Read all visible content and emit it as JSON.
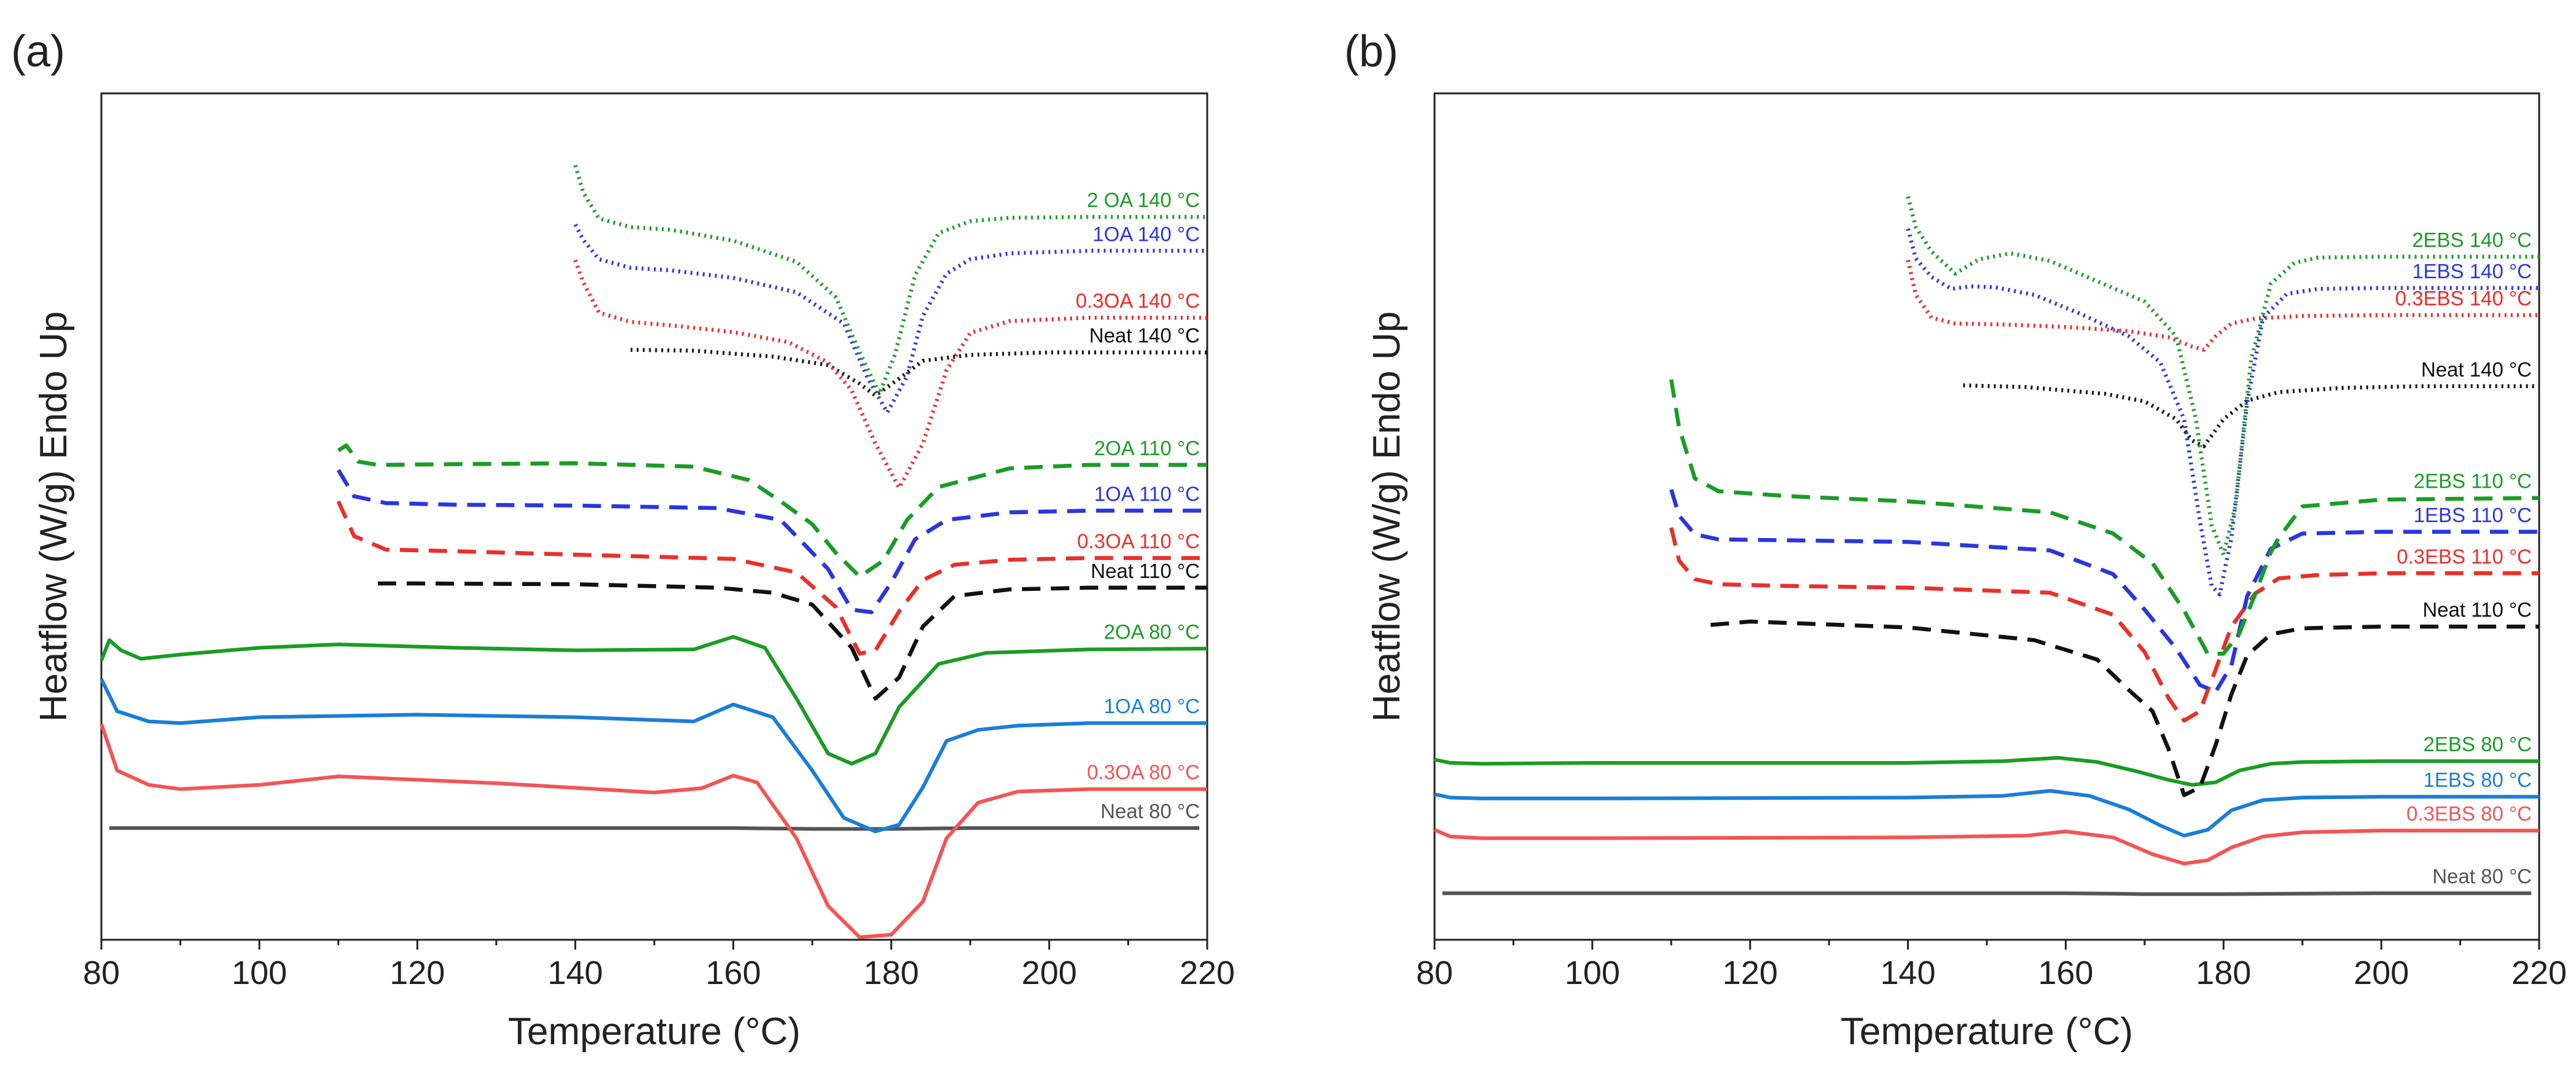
{
  "chart_data": [
    {
      "type": "line",
      "panel": "(a)",
      "xlabel": "Temperature (°C)",
      "ylabel": "Heatflow (W/g) Endo Up",
      "xlim": [
        80,
        220
      ],
      "xticks": [
        80,
        100,
        120,
        140,
        160,
        180,
        200,
        220
      ],
      "ylim": [
        0,
        100
      ],
      "y_units": "arbitrary (curves vertically offset)",
      "series": [
        {
          "name": "Neat 80 °C",
          "color": "#555555",
          "style": "solid",
          "x": [
            81,
            100,
            140,
            160,
            170,
            180,
            190,
            200,
            219
          ],
          "y": [
            13.2,
            13.2,
            13.2,
            13.2,
            13.1,
            13.1,
            13.2,
            13.2,
            13.2
          ]
        },
        {
          "name": "0.3OA 80 °C",
          "color": "#f25555",
          "style": "solid",
          "x": [
            80,
            82,
            86,
            90,
            100,
            110,
            130,
            150,
            156,
            160,
            163,
            168,
            172,
            176,
            180,
            184,
            187,
            191,
            196,
            205,
            220
          ],
          "y": [
            25.5,
            20,
            18.3,
            17.8,
            18.3,
            19.3,
            18.5,
            17.4,
            17.9,
            19.4,
            18.6,
            12,
            4,
            0.3,
            0.6,
            4.5,
            12,
            16.2,
            17.5,
            17.8,
            17.8
          ]
        },
        {
          "name": "1OA 80 °C",
          "color": "#1a7ed8",
          "style": "solid",
          "x": [
            80,
            82,
            86,
            90,
            100,
            120,
            140,
            155,
            160,
            165,
            170,
            174,
            178,
            181,
            184,
            187,
            191,
            196,
            205,
            220
          ],
          "y": [
            30.8,
            27,
            25.8,
            25.6,
            26.3,
            26.6,
            26.3,
            25.8,
            27.8,
            26.3,
            20,
            14.4,
            12.8,
            13.6,
            18,
            23.5,
            24.8,
            25.3,
            25.6,
            25.6
          ]
        },
        {
          "name": "2OA 80 °C",
          "color": "#1b9c25",
          "style": "solid",
          "x": [
            80,
            81,
            82.5,
            85,
            90,
            100,
            110,
            125,
            140,
            155,
            160,
            164,
            168,
            172,
            175,
            178,
            181,
            186,
            192,
            205,
            220
          ],
          "y": [
            33,
            35.4,
            34.2,
            33.2,
            33.7,
            34.5,
            34.9,
            34.5,
            34.2,
            34.3,
            35.8,
            34.5,
            28.5,
            22,
            20.8,
            22,
            27.5,
            32.6,
            33.9,
            34.3,
            34.4
          ]
        },
        {
          "name": "Neat 110 °C",
          "color": "#111111",
          "style": "dashed",
          "x": [
            115,
            120,
            140,
            158,
            165,
            170,
            175,
            178,
            181,
            184,
            188,
            195,
            205,
            220
          ],
          "y": [
            42.1,
            42.1,
            42,
            41.6,
            41,
            39.6,
            34.5,
            28.5,
            31,
            37,
            40.6,
            41.4,
            41.6,
            41.6
          ]
        },
        {
          "name": "0.3OA 110 °C",
          "color": "#e8312a",
          "style": "dashed",
          "x": [
            110,
            112,
            116,
            125,
            140,
            160,
            168,
            173,
            176,
            178,
            181,
            184,
            188,
            195,
            205,
            220
          ],
          "y": [
            51.8,
            47.7,
            46.1,
            45.9,
            45.5,
            45,
            43.4,
            39.3,
            33.8,
            34.2,
            38.8,
            42.5,
            44.3,
            44.9,
            45.1,
            45.1
          ]
        },
        {
          "name": "1OA 110 °C",
          "color": "#2a36e0",
          "style": "dashed",
          "x": [
            110,
            112,
            116,
            125,
            140,
            158,
            166,
            172,
            175,
            177.5,
            180,
            183,
            187,
            195,
            205,
            220
          ],
          "y": [
            55.5,
            52.4,
            51.6,
            51.4,
            51.3,
            51,
            49.6,
            43.8,
            39,
            38.7,
            42.2,
            47.3,
            49.6,
            50.5,
            50.7,
            50.7
          ]
        },
        {
          "name": "2OA 110 °C",
          "color": "#1b9c25",
          "style": "dashed",
          "x": [
            110,
            111,
            112.5,
            115,
            125,
            140,
            155,
            162,
            166,
            170,
            173,
            176,
            179,
            182,
            186,
            195,
            205,
            220
          ],
          "y": [
            57.8,
            58.4,
            56.5,
            56.1,
            56.2,
            56.3,
            55.9,
            54.3,
            51.8,
            49.1,
            45.7,
            42.9,
            44.8,
            49.6,
            53.5,
            55.7,
            56.1,
            56.1
          ]
        },
        {
          "name": "Neat 140 °C",
          "color": "#111111",
          "style": "dotted",
          "x": [
            147,
            155,
            165,
            172,
            176,
            178,
            181,
            184,
            190,
            200,
            220
          ],
          "y": [
            69.7,
            69.6,
            68.9,
            67.9,
            65.7,
            64.3,
            66.3,
            68.4,
            69.1,
            69.4,
            69.4
          ]
        },
        {
          "name": "0.3OA 140 °C",
          "color": "#f02a2a",
          "style": "dotted",
          "x": [
            140,
            141,
            143,
            147,
            152,
            160,
            167,
            172,
            175,
            178,
            181,
            184,
            187,
            190,
            195,
            205,
            220
          ],
          "y": [
            80.3,
            77.7,
            74.1,
            73,
            72.6,
            71.8,
            70.6,
            68.2,
            64.9,
            58.6,
            53.4,
            58.6,
            67.3,
            71.7,
            73.1,
            73.5,
            73.5
          ]
        },
        {
          "name": "1OA 140 °C",
          "color": "#2a36e0",
          "style": "dotted",
          "x": [
            140,
            141,
            143,
            147,
            152,
            160,
            168,
            174,
            177,
            179.5,
            182,
            184,
            187,
            190,
            195,
            205,
            220
          ],
          "y": [
            84.5,
            82.7,
            80.4,
            79.4,
            79.1,
            78.2,
            76.5,
            72.8,
            66.4,
            62.3,
            66.6,
            73.7,
            78.7,
            80.4,
            81.1,
            81.4,
            81.4
          ]
        },
        {
          "name": "2 OA 140 °C",
          "color": "#1b9c25",
          "style": "dotted",
          "x": [
            140,
            141,
            143,
            147,
            152,
            160,
            168,
            173,
            176,
            178.5,
            180.5,
            183,
            186,
            190,
            195,
            205,
            220
          ],
          "y": [
            91.5,
            88.3,
            85.2,
            84.2,
            83.9,
            82.6,
            80.1,
            75.9,
            69.4,
            64.5,
            69.2,
            78.5,
            83.5,
            84.9,
            85.3,
            85.4,
            85.4
          ]
        }
      ]
    },
    {
      "type": "line",
      "panel": "(b)",
      "xlabel": "Temperature (°C)",
      "ylabel": "Heatflow (W/g) Endo Up",
      "xlim": [
        80,
        220
      ],
      "xticks": [
        80,
        100,
        120,
        140,
        160,
        180,
        200,
        220
      ],
      "ylim": [
        0,
        100
      ],
      "y_units": "arbitrary (curves vertically offset)",
      "series": [
        {
          "name": "Neat 80 °C",
          "color": "#555555",
          "style": "solid",
          "x": [
            81,
            120,
            160,
            170,
            180,
            200,
            219
          ],
          "y": [
            5.5,
            5.5,
            5.5,
            5.4,
            5.4,
            5.5,
            5.5
          ]
        },
        {
          "name": "0.3EBS 80 °C",
          "color": "#f25555",
          "style": "solid",
          "x": [
            80,
            82,
            86,
            100,
            140,
            155,
            160,
            166,
            171,
            175,
            178,
            181,
            185,
            190,
            200,
            220
          ],
          "y": [
            13,
            12.2,
            12,
            12,
            12.1,
            12.3,
            12.8,
            12.1,
            10.1,
            9,
            9.4,
            10.9,
            12.2,
            12.7,
            12.9,
            12.9
          ]
        },
        {
          "name": "1EBS 80 °C",
          "color": "#1a7ed8",
          "style": "solid",
          "x": [
            80,
            82,
            86,
            100,
            140,
            152,
            158,
            163,
            168,
            172,
            175,
            178,
            181,
            185,
            190,
            200,
            220
          ],
          "y": [
            17.2,
            16.8,
            16.7,
            16.7,
            16.8,
            17,
            17.6,
            17,
            15.4,
            13.5,
            12.3,
            13,
            15.3,
            16.5,
            16.8,
            16.9,
            16.9
          ]
        },
        {
          "name": "2EBS 80 °C",
          "color": "#1b9c25",
          "style": "solid",
          "x": [
            80,
            82,
            86,
            100,
            140,
            152,
            159,
            164,
            169,
            173,
            176,
            179,
            182,
            186,
            190,
            200,
            220
          ],
          "y": [
            21.3,
            20.9,
            20.8,
            20.9,
            20.9,
            21.1,
            21.5,
            21,
            19.9,
            18.9,
            18.3,
            18.6,
            20,
            20.8,
            21,
            21.1,
            21.1
          ]
        },
        {
          "name": "Neat 110 °C",
          "color": "#111111",
          "style": "dashed",
          "x": [
            115,
            120,
            140,
            156,
            164,
            168,
            171,
            173,
            175,
            177,
            179,
            181,
            183,
            186,
            190,
            200,
            220
          ],
          "y": [
            37.2,
            37.6,
            36.9,
            35.4,
            33.1,
            29.5,
            27,
            22.6,
            17.1,
            18,
            23,
            29,
            33.6,
            36.1,
            36.8,
            37,
            37
          ]
        },
        {
          "name": "0.3EBS 110 °C",
          "color": "#e8312a",
          "style": "dashed",
          "x": [
            110,
            111,
            113,
            116,
            125,
            140,
            158,
            166,
            170,
            173,
            175,
            177,
            179,
            181,
            184,
            187,
            192,
            200,
            220
          ],
          "y": [
            48.7,
            44.8,
            42.6,
            42,
            41.8,
            41.6,
            41,
            38.4,
            34,
            28.6,
            25.9,
            27,
            31.9,
            37,
            40.9,
            42.7,
            43.1,
            43.3,
            43.3
          ]
        },
        {
          "name": "1EBS 110 °C",
          "color": "#2a36e0",
          "style": "dashed",
          "x": [
            110,
            111,
            113,
            116,
            125,
            140,
            158,
            166,
            170,
            174,
            177,
            179,
            181,
            183,
            186,
            190,
            200,
            220
          ],
          "y": [
            53.2,
            50.1,
            47.9,
            47.3,
            47.2,
            47,
            46,
            43.2,
            39,
            34.4,
            30.1,
            29.3,
            32.4,
            40.6,
            46.2,
            48,
            48.2,
            48.2
          ]
        },
        {
          "name": "2EBS 110 °C",
          "color": "#1b9c25",
          "style": "dashed",
          "x": [
            110,
            111,
            113,
            116,
            125,
            140,
            158,
            166,
            171,
            175,
            178,
            180,
            182,
            184,
            186,
            187,
            190,
            200,
            220
          ],
          "y": [
            66.2,
            60.5,
            54.5,
            53,
            52.4,
            51.8,
            50.5,
            48,
            44.5,
            38.9,
            33.8,
            33.8,
            36.2,
            40.8,
            45.8,
            47.5,
            51.2,
            52,
            52.2
          ]
        },
        {
          "name": "Neat 140 °C",
          "color": "#111111",
          "style": "dotted",
          "x": [
            147,
            155,
            165,
            170,
            174,
            176,
            177.5,
            180,
            183,
            187,
            195,
            205,
            220
          ],
          "y": [
            65.5,
            65.3,
            64.5,
            63.6,
            61.5,
            59,
            58.3,
            61.5,
            63.7,
            64.7,
            65.2,
            65.4,
            65.4
          ]
        },
        {
          "name": "0.3EBS 140 °C",
          "color": "#f02a2a",
          "style": "dotted",
          "x": [
            140,
            141,
            143,
            146,
            152,
            160,
            168,
            173,
            176,
            177.5,
            179,
            181,
            184,
            190,
            200,
            220
          ],
          "y": [
            80.3,
            76.2,
            73.5,
            72.8,
            72.7,
            72.4,
            71.9,
            71.2,
            70.1,
            69.7,
            71.3,
            72.8,
            73.4,
            73.7,
            73.8,
            73.8
          ]
        },
        {
          "name": "1EBS 140 °C",
          "color": "#2a36e0",
          "style": "dotted",
          "x": [
            140,
            141,
            143,
            145.5,
            148,
            151,
            156,
            162,
            168,
            172,
            175,
            177,
            178.5,
            179.5,
            181,
            183,
            185,
            188,
            192,
            200,
            220
          ],
          "y": [
            84,
            80.5,
            78.3,
            76.9,
            77.2,
            77.1,
            76.2,
            73.9,
            71.3,
            68.2,
            61.5,
            49.5,
            41.8,
            40.8,
            47.5,
            63.5,
            73.5,
            76.3,
            76.9,
            77,
            77
          ]
        },
        {
          "name": "2EBS 140 °C",
          "color": "#1b9c25",
          "style": "dotted",
          "x": [
            140,
            141,
            143,
            146,
            149,
            153,
            158,
            164,
            170,
            174,
            176.5,
            178.5,
            180,
            181.5,
            183.5,
            186,
            189,
            192,
            200,
            220
          ],
          "y": [
            87.8,
            84.2,
            81.3,
            78.7,
            80.4,
            81.1,
            80.2,
            77.8,
            75.4,
            71.3,
            61.5,
            49,
            45.5,
            51.2,
            68.5,
            77.5,
            80,
            80.6,
            80.7,
            80.7
          ]
        }
      ]
    }
  ]
}
